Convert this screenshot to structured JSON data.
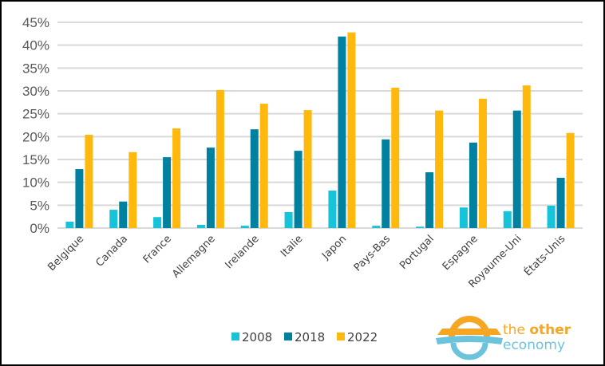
{
  "chart_data": {
    "type": "bar",
    "title": "",
    "xlabel": "",
    "ylabel": "",
    "ylim": [
      0,
      45
    ],
    "y_ticks": [
      "0%",
      "5%",
      "10%",
      "15%",
      "20%",
      "25%",
      "30%",
      "35%",
      "40%",
      "45%"
    ],
    "y_tick_values": [
      0,
      5,
      10,
      15,
      20,
      25,
      30,
      35,
      40,
      45
    ],
    "grid": true,
    "legend_position": "bottom",
    "categories": [
      "Belgique",
      "Canada",
      "France",
      "Allemagne",
      "Irelande",
      "Italie",
      "Japon",
      "Pays-Bas",
      "Portugal",
      "Espagne",
      "Royaume-Uni",
      "États-Unis"
    ],
    "series": [
      {
        "name": "2008",
        "color": "#17c3d8",
        "values": [
          1.4,
          4.0,
          2.4,
          0.7,
          0.5,
          3.5,
          8.2,
          0.5,
          0.3,
          4.5,
          3.7,
          4.9
        ]
      },
      {
        "name": "2018",
        "color": "#00819f",
        "values": [
          12.9,
          5.8,
          15.5,
          17.6,
          21.6,
          16.9,
          41.9,
          19.4,
          12.2,
          18.7,
          25.7,
          11.0
        ]
      },
      {
        "name": "2022",
        "color": "#ffb80c",
        "values": [
          20.4,
          16.6,
          21.8,
          30.2,
          27.2,
          25.8,
          42.8,
          30.7,
          25.7,
          28.3,
          31.2,
          20.8
        ]
      }
    ]
  },
  "logo": {
    "line1_a": "the ",
    "line1_b": "other",
    "line2": "economy",
    "orange": "#f5a623",
    "blue": "#6cc3dc"
  }
}
